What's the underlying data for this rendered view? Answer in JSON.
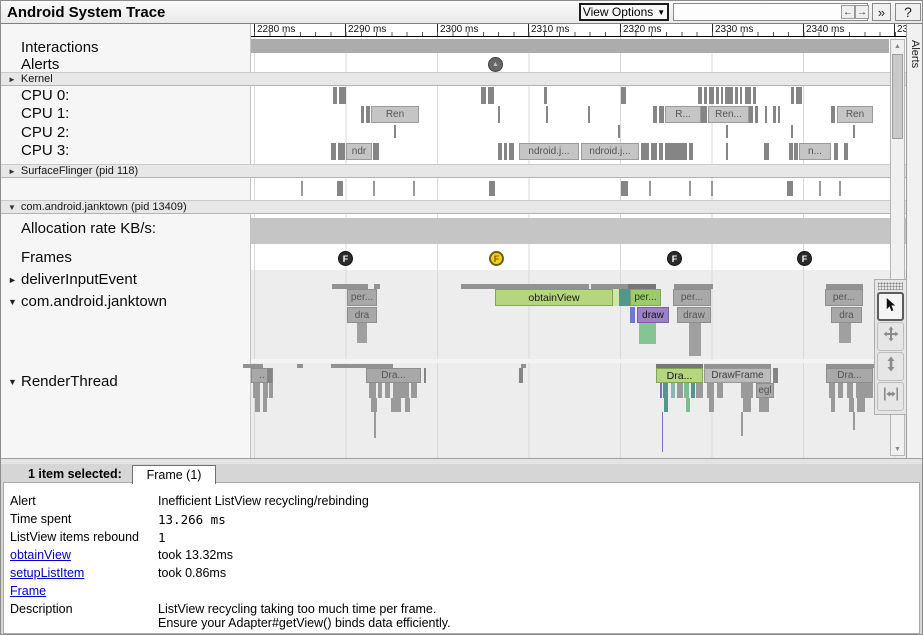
{
  "header": {
    "title": "Android System Trace",
    "view_options_label": "View Options",
    "view_options_caret": "▼",
    "search_value": "",
    "back_icon": "←",
    "forward_icon": "→",
    "overflow_icon": "»",
    "help_icon": "?"
  },
  "ruler": {
    "labels": [
      "2280 ms",
      "2290 ms",
      "2300 ms",
      "2310 ms",
      "2320 ms",
      "2330 ms",
      "2340 ms",
      "23"
    ]
  },
  "sidebar": {
    "interactions": "Interactions",
    "alerts": "Alerts",
    "kernel_arrow": "►",
    "kernel": "Kernel",
    "cpu0": "CPU 0:",
    "cpu1": "CPU 1:",
    "cpu2": "CPU 2:",
    "cpu3": "CPU 3:",
    "surfaceflinger_arrow": "►",
    "surfaceflinger": "SurfaceFlinger (pid 118)",
    "process_arrow": "▼",
    "process": "com.android.janktown (pid 13409)",
    "alloc": "Allocation rate KB/s:",
    "frames": "Frames",
    "deliver_arrow": "►",
    "deliver": "deliverInputEvent",
    "thread_arrow": "▼",
    "thread": "com.android.janktown",
    "render_arrow": "▼",
    "render": "RenderThread"
  },
  "markers": {
    "alert_glyph": "▲",
    "frame_letter": "F"
  },
  "slices": {
    "cpu1": [
      "Ren",
      "R...",
      "Ren...",
      "Ren"
    ],
    "cpu3": [
      "ndr",
      "ndroid.j...",
      "ndroid.j...",
      "n..."
    ],
    "jank": {
      "per1": "per...",
      "dra1": "dra",
      "obtain": "obtainView",
      "per2": "per...",
      "draw1": "draw",
      "per3": "per...",
      "draw2": "draw",
      "per4": "per...",
      "dra2": "dra"
    },
    "render": {
      "left": "..",
      "dra1": "Dra...",
      "dra2": "Dra...",
      "drawframe": "DrawFrame",
      "egl": "egl",
      "dra3": "Dra..."
    }
  },
  "right_tab": {
    "label": "Alerts"
  },
  "toolbar": {
    "select_icon": "cursor-arrow",
    "pan_icon": "four-way-arrow",
    "vzoom_icon": "vertical-double-arrow",
    "hzoom_icon": "horizontal-double-arrow"
  },
  "scrollbar": {
    "up": "▲",
    "down": "▼"
  },
  "bottom": {
    "selected_text": "1 item selected:",
    "tab_label": "Frame (1)",
    "rows": [
      {
        "label": "Alert",
        "value": "Inefficient ListView recycling/rebinding"
      },
      {
        "label": "Time spent",
        "value": "13.266 ms"
      },
      {
        "label": "ListView items rebound",
        "value": "1"
      },
      {
        "label": "obtainView",
        "value": "took 13.32ms"
      },
      {
        "label": "setupListItem",
        "value": "took 0.86ms"
      },
      {
        "label": "Frame",
        "value": ""
      },
      {
        "label": "Description",
        "value": "ListView recycling taking too much time per frame.\nEnsure your Adapter#getView() binds data efficiently."
      }
    ]
  },
  "colors": {
    "frame_marker": "#2b2b2b",
    "frame_marker_selected": "#f2cf1a",
    "slice_green": "#b5d67c",
    "slice_teal": "#52968f",
    "slice_purple": "#9d81c6",
    "slice_blue": "#6d77d8",
    "link": "#0000cc"
  }
}
